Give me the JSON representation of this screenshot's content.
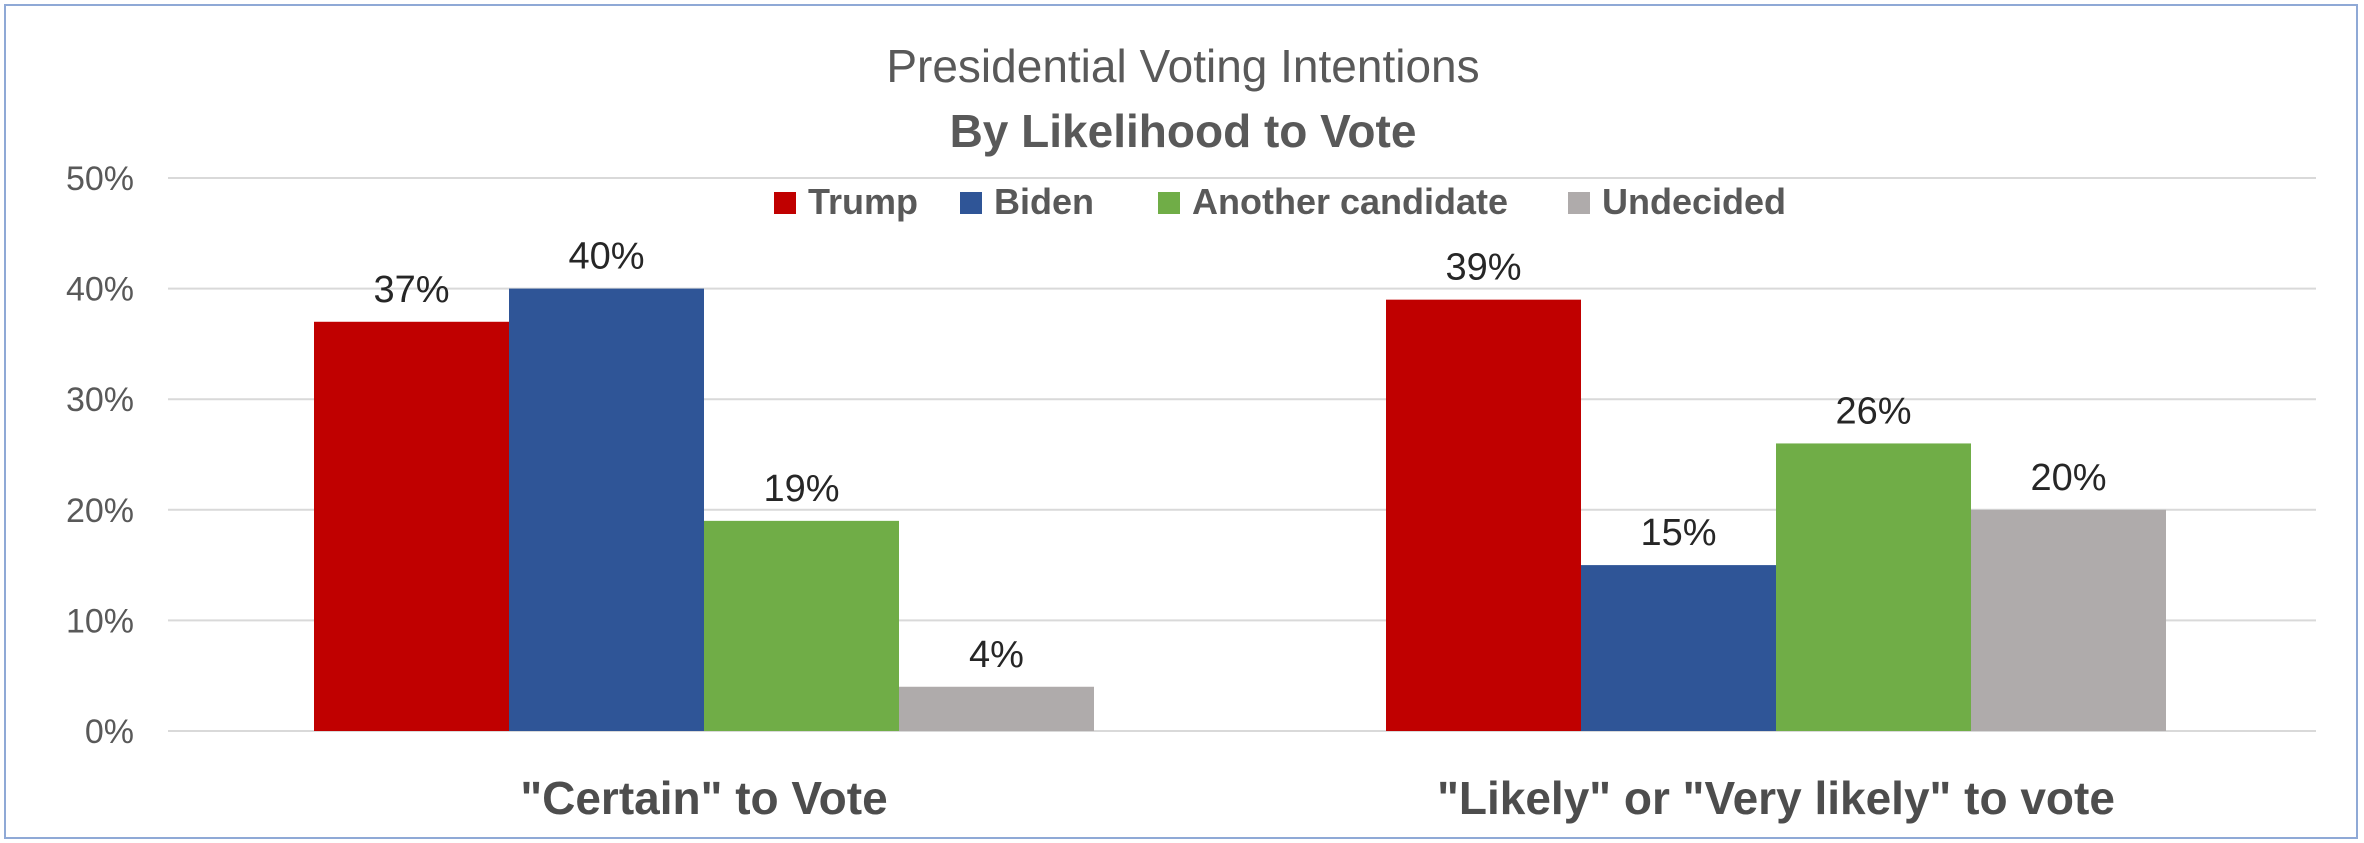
{
  "chart_data": {
    "type": "bar",
    "title": "Presidential Voting Intentions",
    "subtitle": "By Likelihood to Vote",
    "categories": [
      "\"Certain\" to Vote",
      "\"Likely\" or \"Very likely\" to vote"
    ],
    "series": [
      {
        "name": "Trump",
        "color": "#c00000",
        "values": [
          37,
          39
        ],
        "labels": [
          "37%",
          "39%"
        ]
      },
      {
        "name": "Biden",
        "color": "#2f5597",
        "values": [
          40,
          15
        ],
        "labels": [
          "40%",
          "15%"
        ]
      },
      {
        "name": "Another candidate",
        "color": "#70ad47",
        "values": [
          19,
          26
        ],
        "labels": [
          "19%",
          "26%"
        ]
      },
      {
        "name": "Undecided",
        "color": "#afabab",
        "values": [
          4,
          20
        ],
        "labels": [
          "4%",
          "20%"
        ]
      }
    ],
    "y_ticks": [
      "0%",
      "10%",
      "20%",
      "30%",
      "40%",
      "50%"
    ],
    "ylim": [
      0,
      50
    ],
    "grid": true,
    "legend_position": "top"
  }
}
